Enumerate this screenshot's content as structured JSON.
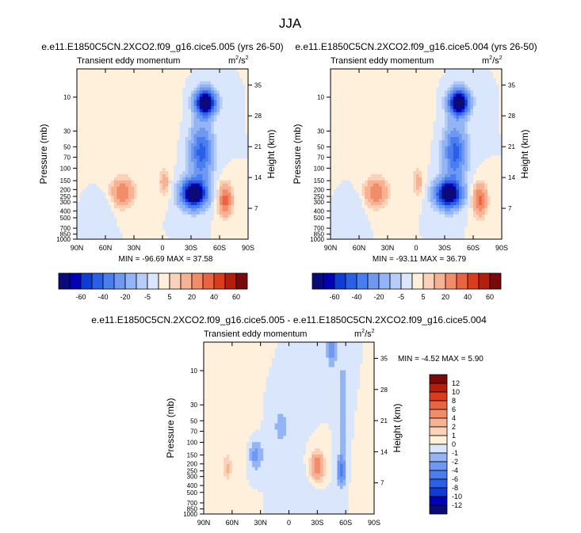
{
  "page_title": "JJA",
  "chart_data": [
    {
      "type": "heatmap",
      "panel": "top-left",
      "title": "e.e11.E1850C5CN.2XCO2.f09_g16.cice5.005 (yrs 26-50)",
      "subtitle": "Transient eddy momentum",
      "units_base": "m",
      "units_exp": "2",
      "units_den": "/s",
      "units_exp2": "2",
      "ylabel": "Pressure (mb)",
      "ylabel_right": "Height (km)",
      "x_ticks": [
        "90N",
        "60N",
        "30N",
        "0",
        "30S",
        "60S",
        "90S"
      ],
      "p_ticks": [
        "10",
        "30",
        "50",
        "70",
        "100",
        "150",
        "200",
        "250",
        "300",
        "400",
        "500",
        "700",
        "850",
        "1000"
      ],
      "h_ticks": [
        "35",
        "28",
        "21",
        "14",
        "7"
      ],
      "stats": "MIN = -96.69  MAX = 37.58",
      "features": [
        {
          "lat": -45,
          "p": 12,
          "v": -95,
          "sx": 7,
          "sy": 0.28
        },
        {
          "lat": -41,
          "p": 60,
          "v": -45,
          "sx": 8,
          "sy": 0.6
        },
        {
          "lat": -33,
          "p": 230,
          "v": -95,
          "sx": 9,
          "sy": 0.3
        },
        {
          "lat": -66,
          "p": 280,
          "v": 35,
          "sx": 5,
          "sy": 0.35
        },
        {
          "lat": 42,
          "p": 220,
          "v": 30,
          "sx": 8,
          "sy": 0.3
        },
        {
          "lat": -2,
          "p": 160,
          "v": 15,
          "sx": 4,
          "sy": 0.3
        },
        {
          "lat": 22,
          "p": 20,
          "v": 3,
          "sx": 20,
          "sy": 0.8
        },
        {
          "lat": 60,
          "p": 350,
          "v": -4,
          "sx": 6,
          "sy": 0.3
        }
      ]
    },
    {
      "type": "heatmap",
      "panel": "top-right",
      "title": "e.e11.E1850C5CN.2XCO2.f09_g16.cice5.004 (yrs 26-50)",
      "subtitle": "Transient eddy momentum",
      "units_base": "m",
      "units_exp": "2",
      "units_den": "/s",
      "units_exp2": "2",
      "ylabel": "Pressure (mb)",
      "ylabel_right": "Height (km)",
      "x_ticks": [
        "90N",
        "60N",
        "30N",
        "0",
        "30S",
        "60S",
        "90S"
      ],
      "p_ticks": [
        "10",
        "30",
        "50",
        "70",
        "100",
        "150",
        "200",
        "250",
        "300",
        "400",
        "500",
        "700",
        "850",
        "1000"
      ],
      "h_ticks": [
        "35",
        "28",
        "21",
        "14",
        "7"
      ],
      "stats": "MIN = -93.11  MAX = 36.79",
      "features": [
        {
          "lat": -45,
          "p": 12,
          "v": -92,
          "sx": 7,
          "sy": 0.28
        },
        {
          "lat": -41,
          "p": 60,
          "v": -44,
          "sx": 8,
          "sy": 0.6
        },
        {
          "lat": -34,
          "p": 230,
          "v": -92,
          "sx": 9,
          "sy": 0.3
        },
        {
          "lat": -67,
          "p": 280,
          "v": 34,
          "sx": 5,
          "sy": 0.35
        },
        {
          "lat": 42,
          "p": 220,
          "v": 30,
          "sx": 8,
          "sy": 0.3
        },
        {
          "lat": -2,
          "p": 160,
          "v": 14,
          "sx": 4,
          "sy": 0.3
        },
        {
          "lat": 22,
          "p": 20,
          "v": 3,
          "sx": 20,
          "sy": 0.8
        },
        {
          "lat": 62,
          "p": 350,
          "v": -4,
          "sx": 6,
          "sy": 0.3
        }
      ]
    },
    {
      "type": "heatmap",
      "panel": "bottom",
      "title": "e.e11.E1850C5CN.2XCO2.f09_g16.cice5.005 - e.e11.E1850C5CN.2XCO2.f09_g16.cice5.004",
      "subtitle": "Transient eddy momentum",
      "units_base": "m",
      "units_exp": "2",
      "units_den": "/s",
      "units_exp2": "2",
      "ylabel": "Pressure (mb)",
      "ylabel_right": "Height (km)",
      "x_ticks": [
        "90N",
        "60N",
        "30N",
        "0",
        "30S",
        "60S",
        "90S"
      ],
      "p_ticks": [
        "10",
        "30",
        "50",
        "70",
        "100",
        "150",
        "200",
        "250",
        "300",
        "400",
        "500",
        "700",
        "850",
        "1000"
      ],
      "h_ticks": [
        "35",
        "28",
        "21",
        "14",
        "7"
      ],
      "stats": "MIN = -4.52  MAX =  5.90",
      "features": [
        {
          "lat": -30,
          "p": 220,
          "v": 5.9,
          "sx": 5,
          "sy": 0.3
        },
        {
          "lat": -55,
          "p": 250,
          "v": -4.5,
          "sx": 3,
          "sy": 0.3
        },
        {
          "lat": -57,
          "p": 40,
          "v": -2.2,
          "sx": 3,
          "sy": 1.2
        },
        {
          "lat": -45,
          "p": 5,
          "v": -2.6,
          "sx": 4,
          "sy": 0.4
        },
        {
          "lat": 35,
          "p": 150,
          "v": -2.6,
          "sx": 5,
          "sy": 0.35
        },
        {
          "lat": 65,
          "p": 230,
          "v": 2.2,
          "sx": 3,
          "sy": 0.3
        },
        {
          "lat": 8,
          "p": 60,
          "v": -1.2,
          "sx": 10,
          "sy": 0.7
        },
        {
          "lat": 55,
          "p": 40,
          "v": 0.7,
          "sx": 15,
          "sy": 1.0
        },
        {
          "lat": -80,
          "p": 400,
          "v": 0.8,
          "sx": 6,
          "sy": 0.6
        },
        {
          "lat": -15,
          "p": 500,
          "v": -0.7,
          "sx": 12,
          "sy": 0.5
        }
      ]
    }
  ],
  "colorbars": {
    "top": {
      "orientation": "horizontal",
      "labels": [
        "-60",
        "-40",
        "-20",
        "-5",
        "5",
        "20",
        "40",
        "60"
      ],
      "levels": [
        -70,
        -60,
        -50,
        -40,
        -30,
        -20,
        -10,
        -5,
        0,
        5,
        10,
        20,
        30,
        40,
        50,
        60
      ],
      "colors": [
        "#0a0a78",
        "#0000b4",
        "#0f3cd2",
        "#2a5fe6",
        "#4a7ef0",
        "#6f98f2",
        "#93b4f5",
        "#b6cdf7",
        "#d9e6fb",
        "#fff0dc",
        "#fad2b9",
        "#f7b293",
        "#f28d6a",
        "#eb6441",
        "#dc3c1e",
        "#b41e0a",
        "#780a0a"
      ]
    },
    "bottom": {
      "orientation": "vertical",
      "labels": [
        "12",
        "10",
        "8",
        "6",
        "4",
        "2",
        "1",
        "0",
        "-1",
        "-2",
        "-4",
        "-6",
        "-8",
        "-10",
        "-12"
      ],
      "levels": [
        -12,
        -10,
        -8,
        -6,
        -4,
        -2,
        -1,
        0,
        1,
        2,
        4,
        6,
        8,
        10,
        12
      ],
      "colors": [
        "#0a0a78",
        "#0000b4",
        "#0f3cd2",
        "#2a5fe6",
        "#4a7ef0",
        "#6f98f2",
        "#93b4f5",
        "#d9e6fb",
        "#fff0dc",
        "#fad2b9",
        "#f7b293",
        "#f28d6a",
        "#eb6441",
        "#dc3c1e",
        "#b41e0a",
        "#780a0a"
      ]
    }
  }
}
